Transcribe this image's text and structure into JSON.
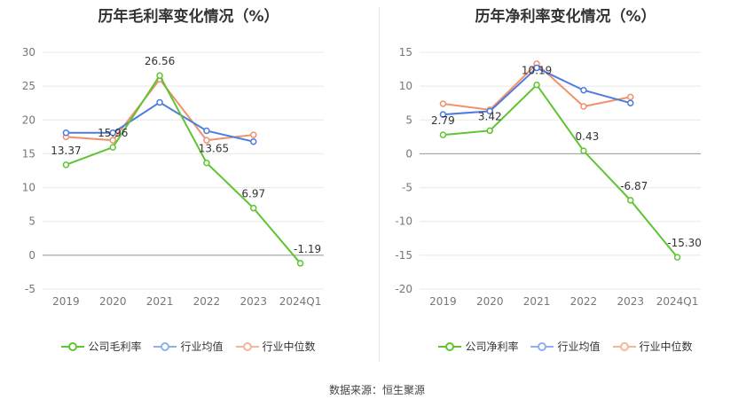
{
  "source_label": "数据来源：恒生聚源",
  "colors": {
    "company": "#5fc431",
    "avg": "#4d7be0",
    "median": "#f0916b",
    "grid": "#e8e8e8",
    "axis_text": "#777777",
    "label_text": "#333333"
  },
  "chart_data": [
    {
      "type": "line",
      "title": "历年毛利率变化情况（%）",
      "categories": [
        "2019",
        "2020",
        "2021",
        "2022",
        "2023",
        "2024Q1"
      ],
      "ylim": [
        -5,
        30
      ],
      "yticks": [
        30,
        25,
        20,
        15,
        10,
        5,
        0,
        -5
      ],
      "grid": true,
      "legend_position": "bottom",
      "series": [
        {
          "name": "公司毛利率",
          "key": "company",
          "values": [
            13.37,
            15.96,
            26.56,
            13.65,
            6.97,
            -1.19
          ],
          "labels": [
            "13.37",
            "15.96",
            "26.56",
            "13.65",
            "6.97",
            "-1.19"
          ]
        },
        {
          "name": "行业均值",
          "key": "avg",
          "values": [
            18.1,
            18.1,
            22.6,
            18.4,
            16.8,
            null
          ]
        },
        {
          "name": "行业中位数",
          "key": "median",
          "values": [
            17.5,
            17.0,
            26.0,
            17.0,
            17.8,
            null
          ]
        }
      ]
    },
    {
      "type": "line",
      "title": "历年净利率变化情况（%）",
      "categories": [
        "2019",
        "2020",
        "2021",
        "2022",
        "2023",
        "2024Q1"
      ],
      "ylim": [
        -20,
        15
      ],
      "yticks": [
        15,
        10,
        5,
        0,
        -5,
        -10,
        -15,
        -20
      ],
      "grid": true,
      "legend_position": "bottom",
      "series": [
        {
          "name": "公司净利率",
          "key": "company",
          "values": [
            2.79,
            3.42,
            10.19,
            0.43,
            -6.87,
            -15.3
          ],
          "labels": [
            "2.79",
            "3.42",
            "10.19",
            "0.43",
            "-6.87",
            "-15.30"
          ]
        },
        {
          "name": "行业均值",
          "key": "avg",
          "values": [
            5.8,
            6.3,
            12.7,
            9.4,
            7.5,
            null
          ]
        },
        {
          "name": "行业中位数",
          "key": "median",
          "values": [
            7.4,
            6.5,
            13.3,
            7.0,
            8.4,
            null
          ]
        }
      ]
    }
  ]
}
